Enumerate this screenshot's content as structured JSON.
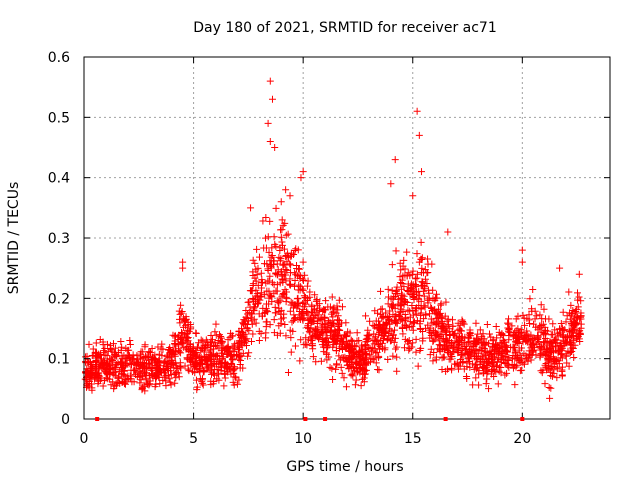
{
  "chart_data": {
    "type": "scatter",
    "title": "Day 180 of 2021, SRMTID for receiver ac71",
    "xlabel": "GPS time / hours",
    "ylabel": "SRMTID / TECUs",
    "xlim": [
      0,
      24
    ],
    "ylim": [
      0,
      0.6
    ],
    "x_ticks": [
      0,
      5,
      10,
      15,
      20
    ],
    "x_tick_labels": [
      "0",
      "5",
      "10",
      "15",
      "20"
    ],
    "y_ticks": [
      0,
      0.1,
      0.2,
      0.3,
      0.4,
      0.5,
      0.6
    ],
    "y_tick_labels": [
      "0",
      "0.1",
      "0.2",
      "0.3",
      "0.4",
      "0.5",
      "0.6"
    ],
    "grid": true,
    "marker": "plus",
    "series_color": "#ff0000",
    "x_range_of_data": [
      0,
      22.7
    ],
    "trend_profile": [
      {
        "x": 0.0,
        "y": 0.08,
        "spread": 0.035
      },
      {
        "x": 1.0,
        "y": 0.09,
        "spread": 0.035
      },
      {
        "x": 2.0,
        "y": 0.085,
        "spread": 0.035
      },
      {
        "x": 3.0,
        "y": 0.085,
        "spread": 0.035
      },
      {
        "x": 4.0,
        "y": 0.09,
        "spread": 0.04
      },
      {
        "x": 4.5,
        "y": 0.15,
        "spread": 0.06
      },
      {
        "x": 5.0,
        "y": 0.1,
        "spread": 0.04
      },
      {
        "x": 6.0,
        "y": 0.1,
        "spread": 0.04
      },
      {
        "x": 7.0,
        "y": 0.1,
        "spread": 0.04
      },
      {
        "x": 7.5,
        "y": 0.17,
        "spread": 0.06
      },
      {
        "x": 8.5,
        "y": 0.24,
        "spread": 0.1
      },
      {
        "x": 9.5,
        "y": 0.22,
        "spread": 0.09
      },
      {
        "x": 10.5,
        "y": 0.15,
        "spread": 0.05
      },
      {
        "x": 11.5,
        "y": 0.14,
        "spread": 0.05
      },
      {
        "x": 12.5,
        "y": 0.09,
        "spread": 0.04
      },
      {
        "x": 13.5,
        "y": 0.14,
        "spread": 0.05
      },
      {
        "x": 14.5,
        "y": 0.2,
        "spread": 0.08
      },
      {
        "x": 15.5,
        "y": 0.2,
        "spread": 0.08
      },
      {
        "x": 16.5,
        "y": 0.13,
        "spread": 0.05
      },
      {
        "x": 17.5,
        "y": 0.12,
        "spread": 0.05
      },
      {
        "x": 18.5,
        "y": 0.1,
        "spread": 0.04
      },
      {
        "x": 19.5,
        "y": 0.12,
        "spread": 0.05
      },
      {
        "x": 20.5,
        "y": 0.14,
        "spread": 0.05
      },
      {
        "x": 21.5,
        "y": 0.1,
        "spread": 0.05
      },
      {
        "x": 22.5,
        "y": 0.16,
        "spread": 0.05
      }
    ],
    "peak_points": [
      {
        "x": 8.5,
        "y": 0.56
      },
      {
        "x": 8.6,
        "y": 0.53
      },
      {
        "x": 8.4,
        "y": 0.49
      },
      {
        "x": 8.7,
        "y": 0.45
      },
      {
        "x": 8.5,
        "y": 0.46
      },
      {
        "x": 9.2,
        "y": 0.38
      },
      {
        "x": 9.0,
        "y": 0.36
      },
      {
        "x": 10.0,
        "y": 0.41
      },
      {
        "x": 9.9,
        "y": 0.4
      },
      {
        "x": 9.4,
        "y": 0.37
      },
      {
        "x": 7.6,
        "y": 0.35
      },
      {
        "x": 15.2,
        "y": 0.51
      },
      {
        "x": 15.3,
        "y": 0.47
      },
      {
        "x": 15.4,
        "y": 0.41
      },
      {
        "x": 14.2,
        "y": 0.43
      },
      {
        "x": 14.0,
        "y": 0.39
      },
      {
        "x": 15.0,
        "y": 0.37
      },
      {
        "x": 16.6,
        "y": 0.31
      },
      {
        "x": 4.5,
        "y": 0.26
      },
      {
        "x": 4.5,
        "y": 0.25
      },
      {
        "x": 20.0,
        "y": 0.28
      },
      {
        "x": 20.0,
        "y": 0.26
      },
      {
        "x": 21.7,
        "y": 0.25
      },
      {
        "x": 22.6,
        "y": 0.24
      }
    ],
    "rug_marks_x": [
      0.6,
      10.1,
      11.0,
      16.5,
      20.0
    ]
  }
}
